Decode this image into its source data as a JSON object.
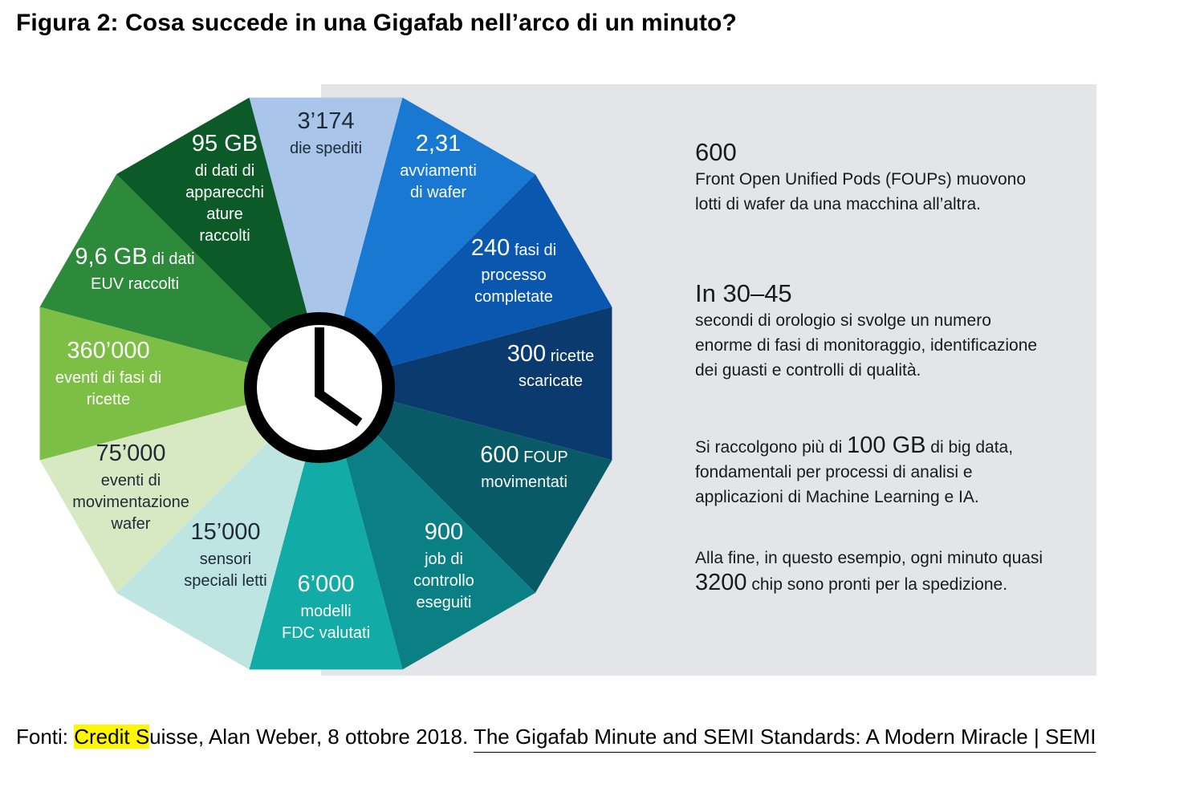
{
  "title": "Figura 2: Cosa succede in una Gigafab nell’arco di un minuto?",
  "colors": {
    "panel_bg": "#e4e5e8",
    "clock_ring": "#000000",
    "clock_face": "#ffffff",
    "highlight": "#fff700"
  },
  "wheel": {
    "center_icon": "clock-icon",
    "segments": [
      {
        "id": "die-spediti",
        "color": "#a9c6ea",
        "text_color": "#1f2a38",
        "lines": [
          {
            "big": "3’174",
            "small": ""
          },
          {
            "big": "",
            "small": "die spediti"
          }
        ]
      },
      {
        "id": "avviamenti-wafer",
        "color": "#1878d2",
        "text_color": "#ffffff",
        "lines": [
          {
            "big": "2,31",
            "small": ""
          },
          {
            "big": "",
            "small": "avviamenti"
          },
          {
            "big": "",
            "small": "di wafer"
          }
        ]
      },
      {
        "id": "fasi-processo",
        "color": "#0a57b0",
        "text_color": "#ffffff",
        "lines": [
          {
            "big": "240",
            "small": " fasi di"
          },
          {
            "big": "",
            "small": "processo"
          },
          {
            "big": "",
            "small": "completate"
          }
        ]
      },
      {
        "id": "ricette-scaricate",
        "color": "#0a3a6e",
        "text_color": "#ffffff",
        "lines": [
          {
            "big": "300",
            "small": " ricette"
          },
          {
            "big": "",
            "small": "scaricate"
          }
        ]
      },
      {
        "id": "foup-movimentati",
        "color": "#075a66",
        "text_color": "#ffffff",
        "lines": [
          {
            "big": "600",
            "small": " FOUP"
          },
          {
            "big": "",
            "small": "movimentati"
          }
        ]
      },
      {
        "id": "job-controllo",
        "color": "#0a7f84",
        "text_color": "#ffffff",
        "lines": [
          {
            "big": "900",
            "small": ""
          },
          {
            "big": "",
            "small": "job di"
          },
          {
            "big": "",
            "small": "controllo"
          },
          {
            "big": "",
            "small": "eseguiti"
          }
        ]
      },
      {
        "id": "modelli-fdc",
        "color": "#12aba5",
        "text_color": "#ffffff",
        "lines": [
          {
            "big": "6’000",
            "small": ""
          },
          {
            "big": "",
            "small": "modelli"
          },
          {
            "big": "",
            "small": "FDC valutati"
          }
        ]
      },
      {
        "id": "sensori-speciali",
        "color": "#bfe5e3",
        "text_color": "#1f2a38",
        "lines": [
          {
            "big": "15’000",
            "small": ""
          },
          {
            "big": "",
            "small": "sensori"
          },
          {
            "big": "",
            "small": "speciali letti"
          }
        ]
      },
      {
        "id": "movimentazione-wafer",
        "color": "#d7e9c3",
        "text_color": "#1f2a38",
        "lines": [
          {
            "big": "75’000",
            "small": ""
          },
          {
            "big": "",
            "small": "eventi di"
          },
          {
            "big": "",
            "small": "movimentazione"
          },
          {
            "big": "",
            "small": "wafer"
          }
        ]
      },
      {
        "id": "eventi-ricette",
        "color": "#7dbe45",
        "text_color": "#ffffff",
        "lines": [
          {
            "big": "360’000",
            "small": ""
          },
          {
            "big": "",
            "small": "eventi di fasi di"
          },
          {
            "big": "",
            "small": "ricette"
          }
        ]
      },
      {
        "id": "euv-raccolti",
        "color": "#2d8a3a",
        "text_color": "#ffffff",
        "lines": [
          {
            "big": "9,6 GB",
            "small": " di dati"
          },
          {
            "big": "",
            "small": "EUV raccolti"
          }
        ]
      },
      {
        "id": "dati-apparecchiature",
        "color": "#0c5a27",
        "text_color": "#ffffff",
        "lines": [
          {
            "big": "95 GB",
            "small": ""
          },
          {
            "big": "",
            "small": "di dati di"
          },
          {
            "big": "",
            "small": "apparecchi"
          },
          {
            "big": "",
            "small": "ature"
          },
          {
            "big": "",
            "small": "raccolti"
          }
        ]
      }
    ]
  },
  "side": {
    "block1": {
      "big": "600",
      "text": "Front Open Unified Pods  (FOUPs) muovono lotti di wafer da una macchina all’altra."
    },
    "block2": {
      "big": "In 30–45",
      "text": "secondi di orologio si svolge un numero enorme di fasi di monitoraggio, identificazione dei guasti e controlli di qualità."
    },
    "block3": {
      "pre": "Si raccolgono più di ",
      "num": "100 GB",
      "post": " di big data, fondamentali per processi di analisi e applicazioni di Machine Learning e IA."
    },
    "block4": {
      "pre": "Alla fine, in questo esempio, ogni minuto quasi ",
      "num": "3200",
      "post": " chip sono pronti per la spedizione."
    }
  },
  "sources": {
    "prefix": "Fonti: ",
    "highlighted": "Credit S",
    "after_highlight": "uisse, Alan Weber, 8 ottobre 2018. ",
    "link_text": "The Gigafab Minute and SEMI Standards: A Modern Miracle | SEMI"
  }
}
